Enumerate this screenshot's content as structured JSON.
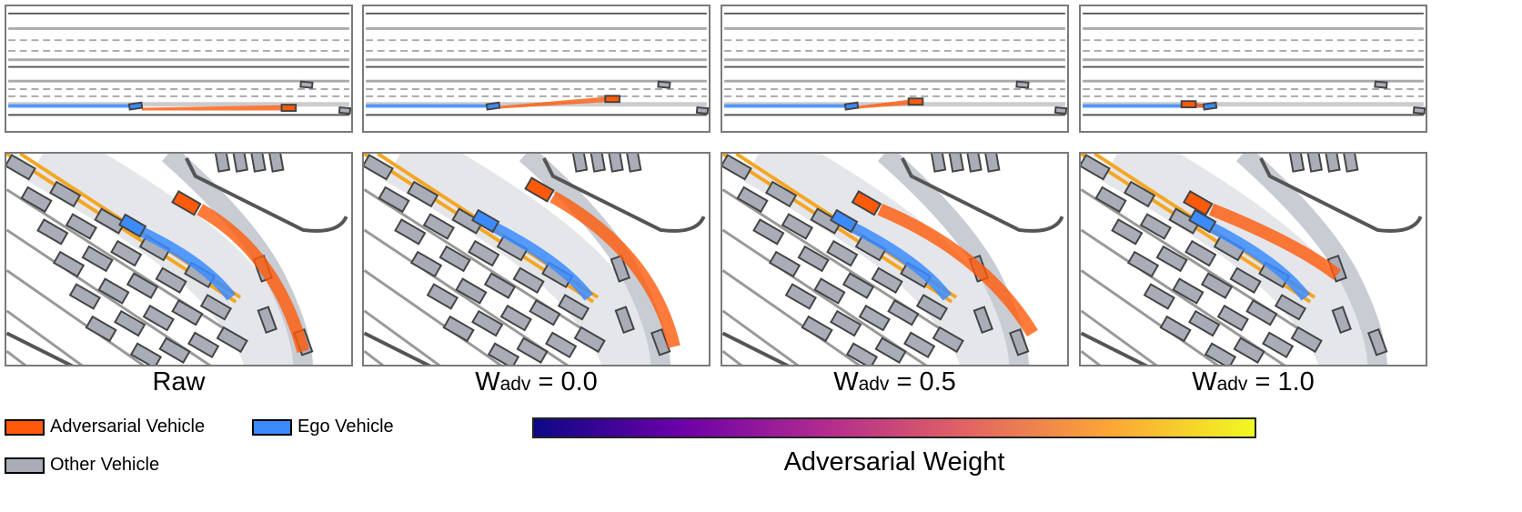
{
  "panels": [
    {
      "caption": "Raw",
      "w_symbol": "",
      "w_sub": "",
      "w_value": ""
    },
    {
      "caption": "",
      "w_symbol": "W",
      "w_sub": "adv",
      "w_value": " = 0.0"
    },
    {
      "caption": "",
      "w_symbol": "W",
      "w_sub": "adv",
      "w_value": " = 0.5"
    },
    {
      "caption": "",
      "w_symbol": "W",
      "w_sub": "adv",
      "w_value": " = 1.0"
    }
  ],
  "legend": [
    {
      "label": "Adversarial Vehicle",
      "color": "#ff5a0a"
    },
    {
      "label": "Ego Vehicle",
      "color": "#3b8bff"
    },
    {
      "label": "Other Vehicle",
      "color": "#a8adb8"
    }
  ],
  "colorbar": {
    "label": "Adversarial Weight",
    "colormap": "plasma",
    "colors": [
      "#0d0887",
      "#6a00a8",
      "#b12a90",
      "#e16462",
      "#fca636",
      "#f0f921"
    ]
  },
  "colors": {
    "lane_edge": "#555555",
    "lane_line": "#b0b0b0",
    "road_boundary": "#f5a623",
    "frame": "#7a7a7a"
  }
}
